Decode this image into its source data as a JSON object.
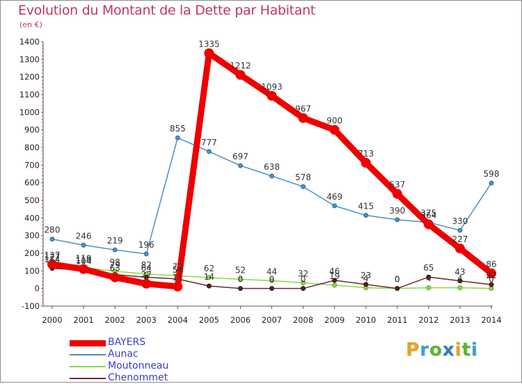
{
  "title": "Evolution du Montant de la Dette par Habitant",
  "unit": "(en €)",
  "logo": {
    "text": "Proxiti",
    "letters": [
      {
        "ch": "P",
        "color": "#e8a21c"
      },
      {
        "ch": "r",
        "color": "#3aa0d8"
      },
      {
        "ch": "o",
        "color": "#5bb531"
      },
      {
        "ch": "x",
        "color": "#2f7fc1"
      },
      {
        "ch": "i",
        "color": "#e8a21c"
      },
      {
        "ch": "t",
        "color": "#5bb531"
      },
      {
        "ch": "i",
        "color": "#3aa0d8"
      }
    ]
  },
  "chart_data": {
    "type": "line",
    "title": "Evolution du Montant de la Dette par Habitant",
    "ylabel": "(en €)",
    "xlabel": "",
    "ylim": [
      -100,
      1400
    ],
    "yticks": [
      -100,
      0,
      100,
      200,
      300,
      400,
      500,
      600,
      700,
      800,
      900,
      1000,
      1100,
      1200,
      1300,
      1400
    ],
    "x": [
      "2000",
      "2001",
      "2002",
      "2003",
      "2004",
      "2005",
      "2006",
      "2007",
      "2008",
      "2009",
      "2010",
      "2011",
      "2012",
      "2013",
      "2014"
    ],
    "grid": false,
    "legend_position": "bottom-left",
    "series": [
      {
        "name": "BAYERS",
        "color": "#ee0000",
        "values": [
          137,
          110,
          63,
          27,
          11,
          1335,
          1212,
          1093,
          967,
          900,
          713,
          537,
          364,
          227,
          86
        ]
      },
      {
        "name": "Aunac",
        "color": "#4a90c8",
        "values": [
          280,
          246,
          219,
          196,
          855,
          777,
          697,
          638,
          578,
          469,
          415,
          390,
          375,
          330,
          598
        ]
      },
      {
        "name": "Moutonneau",
        "color": "#8bd84a",
        "values": [
          127,
          119,
          98,
          82,
          72,
          62,
          52,
          44,
          32,
          19,
          4,
          0,
          4,
          4,
          0
        ]
      },
      {
        "name": "Chenommet",
        "color": "#6e2b2b",
        "values": [
          114,
          104,
          79,
          64,
          54,
          14,
          0,
          0,
          0,
          46,
          23,
          0,
          65,
          43,
          22
        ]
      }
    ]
  }
}
